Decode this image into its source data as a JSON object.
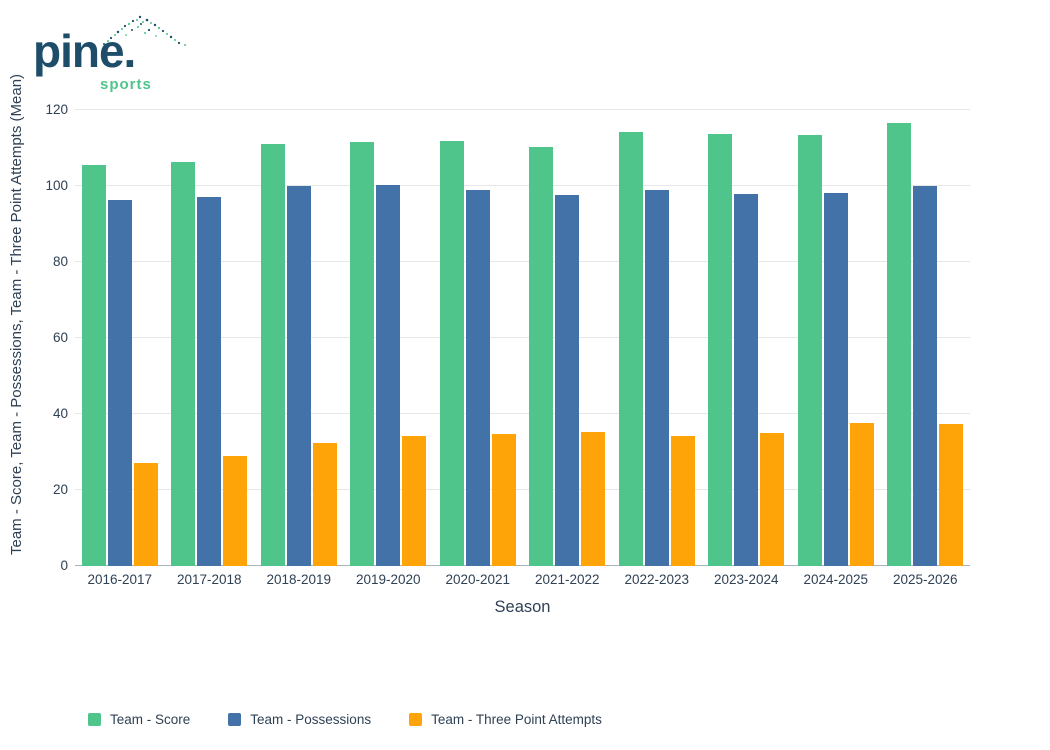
{
  "logo": {
    "brand": "pine.",
    "sub": "sports"
  },
  "chart_data": {
    "type": "bar",
    "title": "",
    "xlabel": "Season",
    "ylabel": "Team - Score, Team - Possessions, Team - Three Point Attempts (Mean)",
    "ylim": [
      0,
      120
    ],
    "yticks": [
      0,
      20,
      40,
      60,
      80,
      100,
      120
    ],
    "grid": true,
    "legend_position": "bottom",
    "categories": [
      "2016-2017",
      "2017-2018",
      "2018-2019",
      "2019-2020",
      "2020-2021",
      "2021-2022",
      "2022-2023",
      "2023-2024",
      "2024-2025",
      "2025-2026"
    ],
    "series": [
      {
        "name": "Team - Score",
        "color": "#4fc48b",
        "values": [
          105.5,
          106.3,
          111.0,
          111.6,
          111.8,
          110.3,
          114.2,
          113.7,
          113.4,
          116.6
        ]
      },
      {
        "name": "Team - Possessions",
        "color": "#4372a8",
        "values": [
          96.3,
          97.1,
          100.0,
          100.3,
          98.9,
          97.6,
          98.9,
          97.9,
          98.2,
          100.0
        ]
      },
      {
        "name": "Team - Three Point Attempts",
        "color": "#ffa408",
        "values": [
          27.1,
          28.9,
          32.4,
          34.2,
          34.7,
          35.3,
          34.2,
          35.0,
          37.6,
          37.4
        ]
      }
    ]
  }
}
